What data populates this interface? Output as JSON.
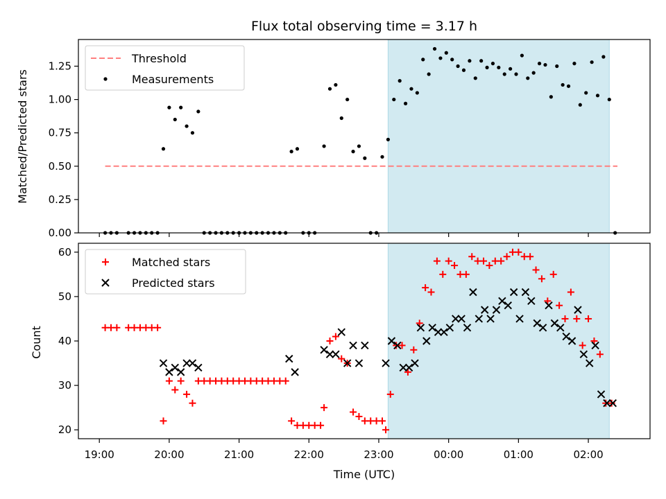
{
  "title": "Flux total observing time = 3.17 h",
  "chart_data": [
    {
      "type": "scatter",
      "panel": "top",
      "ylabel": "Matched/Predicted stars",
      "xlabel": "",
      "xlim": [
        "18:42",
        "02:53"
      ],
      "ylim": [
        0,
        1.45
      ],
      "y_ticks": [
        0.0,
        0.25,
        0.5,
        0.75,
        1.0,
        1.25
      ],
      "y_tick_labels": [
        "0.00",
        "0.25",
        "0.50",
        "0.75",
        "1.00",
        "1.25"
      ],
      "legend": {
        "position": "top-left",
        "entries": [
          {
            "label": "Threshold",
            "color": "#ff7f7f",
            "style": "dashed-line"
          },
          {
            "label": "Measurements",
            "color": "#000000",
            "style": "dot"
          }
        ]
      },
      "shaded_interval": {
        "start": "23:08",
        "end": "02:18",
        "color": "#add8e6"
      },
      "threshold": {
        "value": 0.5,
        "x_start": "19:05",
        "x_end": "02:25"
      },
      "series": [
        {
          "name": "Measurements",
          "color": "#000000",
          "points": [
            [
              "19:05",
              0
            ],
            [
              "19:10",
              0
            ],
            [
              "19:15",
              0
            ],
            [
              "19:25",
              0
            ],
            [
              "19:30",
              0
            ],
            [
              "19:35",
              0
            ],
            [
              "19:40",
              0
            ],
            [
              "19:45",
              0
            ],
            [
              "19:50",
              0
            ],
            [
              "19:55",
              0.63
            ],
            [
              "20:00",
              0.94
            ],
            [
              "20:05",
              0.85
            ],
            [
              "20:10",
              0.94
            ],
            [
              "20:15",
              0.8
            ],
            [
              "20:20",
              0.75
            ],
            [
              "20:25",
              0.91
            ],
            [
              "20:30",
              0
            ],
            [
              "20:35",
              0
            ],
            [
              "20:40",
              0
            ],
            [
              "20:45",
              0
            ],
            [
              "20:50",
              0
            ],
            [
              "20:55",
              0
            ],
            [
              "21:00",
              0
            ],
            [
              "21:05",
              0
            ],
            [
              "21:10",
              0
            ],
            [
              "21:15",
              0
            ],
            [
              "21:20",
              0
            ],
            [
              "21:25",
              0
            ],
            [
              "21:30",
              0
            ],
            [
              "21:35",
              0
            ],
            [
              "21:40",
              0
            ],
            [
              "21:45",
              0.61
            ],
            [
              "21:50",
              0.63
            ],
            [
              "21:55",
              0
            ],
            [
              "22:00",
              0
            ],
            [
              "22:05",
              0
            ],
            [
              "22:13",
              0.65
            ],
            [
              "22:18",
              1.08
            ],
            [
              "22:23",
              1.11
            ],
            [
              "22:28",
              0.86
            ],
            [
              "22:33",
              1.0
            ],
            [
              "22:38",
              0.61
            ],
            [
              "22:43",
              0.65
            ],
            [
              "22:48",
              0.56
            ],
            [
              "22:53",
              0
            ],
            [
              "22:58",
              0
            ],
            [
              "23:03",
              0.57
            ],
            [
              "23:08",
              0.7
            ],
            [
              "23:13",
              1.0
            ],
            [
              "23:18",
              1.14
            ],
            [
              "23:23",
              0.97
            ],
            [
              "23:28",
              1.08
            ],
            [
              "23:33",
              1.05
            ],
            [
              "23:38",
              1.3
            ],
            [
              "23:43",
              1.19
            ],
            [
              "23:48",
              1.38
            ],
            [
              "23:53",
              1.31
            ],
            [
              "23:58",
              1.35
            ],
            [
              "00:03",
              1.3
            ],
            [
              "00:08",
              1.25
            ],
            [
              "00:13",
              1.22
            ],
            [
              "00:18",
              1.29
            ],
            [
              "00:23",
              1.16
            ],
            [
              "00:28",
              1.29
            ],
            [
              "00:33",
              1.24
            ],
            [
              "00:38",
              1.27
            ],
            [
              "00:43",
              1.24
            ],
            [
              "00:48",
              1.19
            ],
            [
              "00:53",
              1.23
            ],
            [
              "00:58",
              1.19
            ],
            [
              "01:03",
              1.33
            ],
            [
              "01:08",
              1.16
            ],
            [
              "01:13",
              1.2
            ],
            [
              "01:18",
              1.27
            ],
            [
              "01:23",
              1.26
            ],
            [
              "01:28",
              1.02
            ],
            [
              "01:33",
              1.25
            ],
            [
              "01:38",
              1.11
            ],
            [
              "01:43",
              1.1
            ],
            [
              "01:48",
              1.27
            ],
            [
              "01:53",
              0.96
            ],
            [
              "01:58",
              1.05
            ],
            [
              "02:03",
              1.28
            ],
            [
              "02:08",
              1.03
            ],
            [
              "02:13",
              1.32
            ],
            [
              "02:18",
              1.0
            ],
            [
              "02:23",
              0
            ]
          ]
        }
      ]
    },
    {
      "type": "scatter",
      "panel": "bottom",
      "ylabel": "Count",
      "xlabel": "Time (UTC)",
      "xlim": [
        "18:42",
        "02:53"
      ],
      "ylim": [
        18,
        62
      ],
      "y_ticks": [
        20,
        30,
        40,
        50,
        60
      ],
      "y_tick_labels": [
        "20",
        "30",
        "40",
        "50",
        "60"
      ],
      "x_ticks": [
        "19:00",
        "20:00",
        "21:00",
        "22:00",
        "23:00",
        "00:00",
        "01:00",
        "02:00"
      ],
      "x_tick_labels": [
        "19:00",
        "20:00",
        "21:00",
        "22:00",
        "23:00",
        "00:00",
        "01:00",
        "02:00"
      ],
      "legend": {
        "position": "top-left",
        "entries": [
          {
            "label": "Matched stars",
            "color": "#ff0000",
            "style": "plus"
          },
          {
            "label": "Predicted stars",
            "color": "#000000",
            "style": "x"
          }
        ]
      },
      "shaded_interval": {
        "start": "23:08",
        "end": "02:18",
        "color": "#add8e6"
      },
      "series": [
        {
          "name": "Matched stars",
          "color": "#ff0000",
          "marker": "plus",
          "points": [
            [
              "19:05",
              43
            ],
            [
              "19:10",
              43
            ],
            [
              "19:15",
              43
            ],
            [
              "19:25",
              43
            ],
            [
              "19:30",
              43
            ],
            [
              "19:35",
              43
            ],
            [
              "19:40",
              43
            ],
            [
              "19:45",
              43
            ],
            [
              "19:50",
              43
            ],
            [
              "19:55",
              22
            ],
            [
              "20:00",
              31
            ],
            [
              "20:05",
              29
            ],
            [
              "20:10",
              31
            ],
            [
              "20:15",
              28
            ],
            [
              "20:20",
              26
            ],
            [
              "20:25",
              31
            ],
            [
              "20:30",
              31
            ],
            [
              "20:35",
              31
            ],
            [
              "20:40",
              31
            ],
            [
              "20:45",
              31
            ],
            [
              "20:50",
              31
            ],
            [
              "20:55",
              31
            ],
            [
              "21:00",
              31
            ],
            [
              "21:05",
              31
            ],
            [
              "21:10",
              31
            ],
            [
              "21:15",
              31
            ],
            [
              "21:20",
              31
            ],
            [
              "21:25",
              31
            ],
            [
              "21:30",
              31
            ],
            [
              "21:35",
              31
            ],
            [
              "21:40",
              31
            ],
            [
              "21:45",
              22
            ],
            [
              "21:50",
              21
            ],
            [
              "21:55",
              21
            ],
            [
              "22:00",
              21
            ],
            [
              "22:05",
              21
            ],
            [
              "22:10",
              21
            ],
            [
              "22:13",
              25
            ],
            [
              "22:18",
              40
            ],
            [
              "22:23",
              41
            ],
            [
              "22:28",
              36
            ],
            [
              "22:33",
              35
            ],
            [
              "22:38",
              24
            ],
            [
              "22:43",
              23
            ],
            [
              "22:48",
              22
            ],
            [
              "22:53",
              22
            ],
            [
              "22:58",
              22
            ],
            [
              "23:03",
              22
            ],
            [
              "23:06",
              20
            ],
            [
              "23:10",
              28
            ],
            [
              "23:15",
              39
            ],
            [
              "23:20",
              39
            ],
            [
              "23:25",
              33
            ],
            [
              "23:30",
              38
            ],
            [
              "23:35",
              44
            ],
            [
              "23:40",
              52
            ],
            [
              "23:45",
              51
            ],
            [
              "23:50",
              58
            ],
            [
              "23:55",
              55
            ],
            [
              "00:00",
              58
            ],
            [
              "00:05",
              57
            ],
            [
              "00:10",
              55
            ],
            [
              "00:15",
              55
            ],
            [
              "00:20",
              59
            ],
            [
              "00:25",
              58
            ],
            [
              "00:30",
              58
            ],
            [
              "00:35",
              57
            ],
            [
              "00:40",
              58
            ],
            [
              "00:45",
              58
            ],
            [
              "00:50",
              59
            ],
            [
              "00:55",
              60
            ],
            [
              "01:00",
              60
            ],
            [
              "01:05",
              59
            ],
            [
              "01:10",
              59
            ],
            [
              "01:15",
              56
            ],
            [
              "01:20",
              54
            ],
            [
              "01:25",
              49
            ],
            [
              "01:30",
              55
            ],
            [
              "01:35",
              48
            ],
            [
              "01:40",
              45
            ],
            [
              "01:45",
              51
            ],
            [
              "01:50",
              45
            ],
            [
              "01:55",
              39
            ],
            [
              "02:00",
              45
            ],
            [
              "02:05",
              40
            ],
            [
              "02:10",
              37
            ],
            [
              "02:15",
              26
            ],
            [
              "02:20",
              26
            ]
          ]
        },
        {
          "name": "Predicted stars",
          "color": "#000000",
          "marker": "x",
          "points": [
            [
              "19:55",
              35
            ],
            [
              "20:00",
              33
            ],
            [
              "20:05",
              34
            ],
            [
              "20:10",
              33
            ],
            [
              "20:15",
              35
            ],
            [
              "20:20",
              35
            ],
            [
              "20:25",
              34
            ],
            [
              "21:43",
              36
            ],
            [
              "21:48",
              33
            ],
            [
              "22:13",
              38
            ],
            [
              "22:18",
              37
            ],
            [
              "22:23",
              37
            ],
            [
              "22:28",
              42
            ],
            [
              "22:33",
              35
            ],
            [
              "22:38",
              39
            ],
            [
              "22:43",
              35
            ],
            [
              "22:48",
              39
            ],
            [
              "23:06",
              35
            ],
            [
              "23:11",
              40
            ],
            [
              "23:16",
              39
            ],
            [
              "23:21",
              34
            ],
            [
              "23:26",
              34
            ],
            [
              "23:31",
              35
            ],
            [
              "23:36",
              43
            ],
            [
              "23:41",
              40
            ],
            [
              "23:46",
              43
            ],
            [
              "23:51",
              42
            ],
            [
              "23:56",
              42
            ],
            [
              "00:01",
              43
            ],
            [
              "00:06",
              45
            ],
            [
              "00:11",
              45
            ],
            [
              "00:16",
              43
            ],
            [
              "00:21",
              51
            ],
            [
              "00:26",
              45
            ],
            [
              "00:31",
              47
            ],
            [
              "00:36",
              45
            ],
            [
              "00:41",
              47
            ],
            [
              "00:46",
              49
            ],
            [
              "00:51",
              48
            ],
            [
              "00:56",
              51
            ],
            [
              "01:01",
              45
            ],
            [
              "01:06",
              51
            ],
            [
              "01:11",
              49
            ],
            [
              "01:16",
              44
            ],
            [
              "01:21",
              43
            ],
            [
              "01:26",
              48
            ],
            [
              "01:31",
              44
            ],
            [
              "01:36",
              43
            ],
            [
              "01:41",
              41
            ],
            [
              "01:46",
              40
            ],
            [
              "01:51",
              47
            ],
            [
              "01:56",
              37
            ],
            [
              "02:01",
              35
            ],
            [
              "02:06",
              39
            ],
            [
              "02:11",
              28
            ],
            [
              "02:16",
              26
            ],
            [
              "02:21",
              26
            ]
          ]
        }
      ]
    }
  ]
}
